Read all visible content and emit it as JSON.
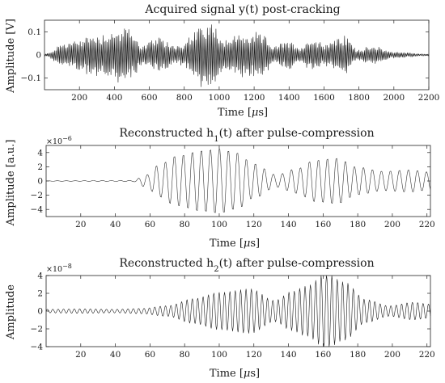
{
  "chart_data": [
    {
      "type": "line",
      "title": "Acquired signal y(t) post-cracking",
      "xlabel": "Time [μs]",
      "ylabel": "Amplitude [V]",
      "xlim": [
        0,
        2200
      ],
      "ylim": [
        -0.15,
        0.15
      ],
      "xticks": [
        200,
        400,
        600,
        800,
        1000,
        1200,
        1400,
        1600,
        1800,
        2000,
        2200
      ],
      "yticks": [
        0.1,
        0,
        -0.1
      ],
      "ytick_labels": [
        "0.1",
        "0",
        "-0.1"
      ],
      "y_exponent": "",
      "line_color": "#1a1a1a",
      "envelope_peaks": [
        {
          "x": 0,
          "amplitude": 0.005
        },
        {
          "x": 120,
          "amplitude": 0.06
        },
        {
          "x": 300,
          "amplitude": 0.1
        },
        {
          "x": 470,
          "amplitude": 0.13
        },
        {
          "x": 520,
          "amplitude": 0.09
        },
        {
          "x": 560,
          "amplitude": 0.05
        },
        {
          "x": 650,
          "amplitude": 0.08
        },
        {
          "x": 760,
          "amplitude": 0.05
        },
        {
          "x": 940,
          "amplitude": 0.16
        },
        {
          "x": 1040,
          "amplitude": 0.08
        },
        {
          "x": 1120,
          "amplitude": 0.1
        },
        {
          "x": 1240,
          "amplitude": 0.1
        },
        {
          "x": 1320,
          "amplitude": 0.04
        },
        {
          "x": 1380,
          "amplitude": 0.07
        },
        {
          "x": 1470,
          "amplitude": 0.04
        },
        {
          "x": 1520,
          "amplitude": 0.08
        },
        {
          "x": 1600,
          "amplitude": 0.06
        },
        {
          "x": 1720,
          "amplitude": 0.09
        },
        {
          "x": 1790,
          "amplitude": 0.03
        },
        {
          "x": 1900,
          "amplitude": 0.04
        },
        {
          "x": 2000,
          "amplitude": 0.015
        },
        {
          "x": 2200,
          "amplitude": 0.005
        }
      ],
      "oscillation_period": 9
    },
    {
      "type": "line",
      "title": "Reconstructed h_1(t) after pulse-compression",
      "xlabel": "Time [μs]",
      "ylabel": "Amplitude [a.u.]",
      "xlim": [
        0,
        222
      ],
      "ylim": [
        -5,
        5
      ],
      "xticks": [
        20,
        40,
        60,
        80,
        100,
        120,
        140,
        160,
        180,
        200,
        220
      ],
      "yticks": [
        4,
        2,
        0,
        -2,
        -4
      ],
      "ytick_labels": [
        "4",
        "2",
        "0",
        "-2",
        "-4"
      ],
      "y_exponent": "×10^-6",
      "line_color": "#333333",
      "envelope_peaks": [
        {
          "x": 0,
          "amplitude": 0.03
        },
        {
          "x": 50,
          "amplitude": 0.08
        },
        {
          "x": 58,
          "amplitude": 0.9
        },
        {
          "x": 65,
          "amplitude": 2.3
        },
        {
          "x": 75,
          "amplitude": 3.6
        },
        {
          "x": 90,
          "amplitude": 4.4
        },
        {
          "x": 100,
          "amplitude": 4.7
        },
        {
          "x": 110,
          "amplitude": 4.1
        },
        {
          "x": 120,
          "amplitude": 2.5
        },
        {
          "x": 133,
          "amplitude": 0.9
        },
        {
          "x": 145,
          "amplitude": 1.8
        },
        {
          "x": 155,
          "amplitude": 3.0
        },
        {
          "x": 168,
          "amplitude": 3.3
        },
        {
          "x": 180,
          "amplitude": 2.0
        },
        {
          "x": 195,
          "amplitude": 1.4
        },
        {
          "x": 210,
          "amplitude": 1.6
        },
        {
          "x": 222,
          "amplitude": 1.3
        }
      ],
      "oscillation_period": 5.2
    },
    {
      "type": "line",
      "title": "Reconstructed h_2(t) after pulse-compression",
      "xlabel": "Time [μs]",
      "ylabel": "Amplitude",
      "xlim": [
        0,
        222
      ],
      "ylim": [
        -4,
        4
      ],
      "xticks": [
        20,
        40,
        60,
        80,
        100,
        120,
        140,
        160,
        180,
        200,
        220
      ],
      "yticks": [
        4,
        2,
        0,
        -2,
        -4
      ],
      "ytick_labels": [
        "4",
        "2",
        "0",
        "-2",
        "-4"
      ],
      "y_exponent": "×10^-8",
      "line_color": "#1a1a1a",
      "envelope_peaks": [
        {
          "x": 0,
          "amplitude": 0.2
        },
        {
          "x": 20,
          "amplitude": 0.25
        },
        {
          "x": 40,
          "amplitude": 0.2
        },
        {
          "x": 55,
          "amplitude": 0.3
        },
        {
          "x": 70,
          "amplitude": 0.6
        },
        {
          "x": 85,
          "amplitude": 1.4
        },
        {
          "x": 100,
          "amplitude": 2.1
        },
        {
          "x": 118,
          "amplitude": 2.5
        },
        {
          "x": 132,
          "amplitude": 1.2
        },
        {
          "x": 142,
          "amplitude": 2.2
        },
        {
          "x": 150,
          "amplitude": 2.8
        },
        {
          "x": 162,
          "amplitude": 4.2
        },
        {
          "x": 172,
          "amplitude": 3.3
        },
        {
          "x": 185,
          "amplitude": 1.3
        },
        {
          "x": 198,
          "amplitude": 0.6
        },
        {
          "x": 212,
          "amplitude": 1.0
        },
        {
          "x": 222,
          "amplitude": 0.8
        }
      ],
      "oscillation_period": 3.1
    }
  ]
}
